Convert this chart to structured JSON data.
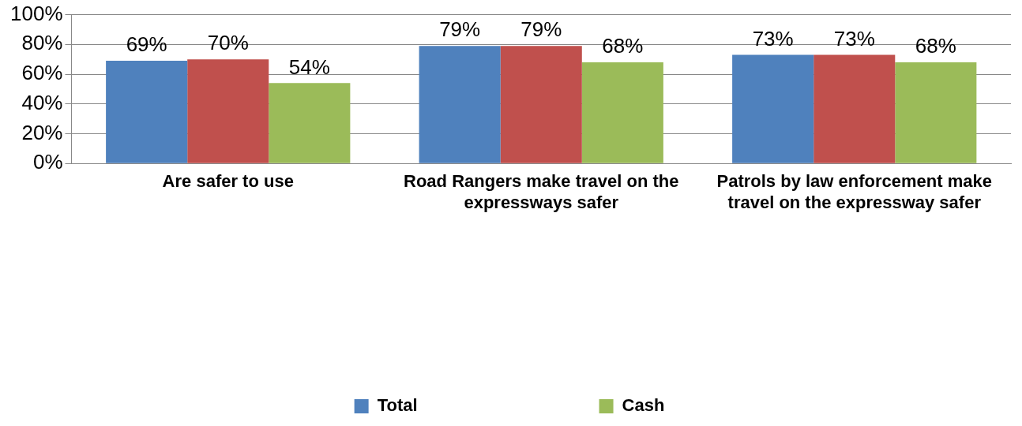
{
  "chart_data": {
    "type": "bar",
    "categories": [
      "Are safer to use",
      "Road Rangers make travel on the expressways safer",
      "Patrols by law enforcement make travel on the expressway safer"
    ],
    "series": [
      {
        "name": "Total",
        "color": "#4f81bd",
        "values": [
          69,
          79,
          73
        ],
        "value_labels": [
          "69%",
          "79%",
          "73%"
        ]
      },
      {
        "color": "#c0504d",
        "values": [
          70,
          79,
          73
        ],
        "value_labels": [
          "70%",
          "79%",
          "73%"
        ]
      },
      {
        "name": "Cash",
        "color": "#9bbb59",
        "values": [
          54,
          68,
          68
        ],
        "value_labels": [
          "54%",
          "68%",
          "68%"
        ]
      }
    ],
    "ylim": [
      0,
      100
    ],
    "yticks": [
      {
        "value": 0,
        "label": "0%"
      },
      {
        "value": 20,
        "label": "20%"
      },
      {
        "value": 40,
        "label": "40%"
      },
      {
        "value": 60,
        "label": "60%"
      },
      {
        "value": 80,
        "label": "80%"
      },
      {
        "value": 100,
        "label": "100%"
      }
    ],
    "grid": "y",
    "legend": "bottom"
  }
}
